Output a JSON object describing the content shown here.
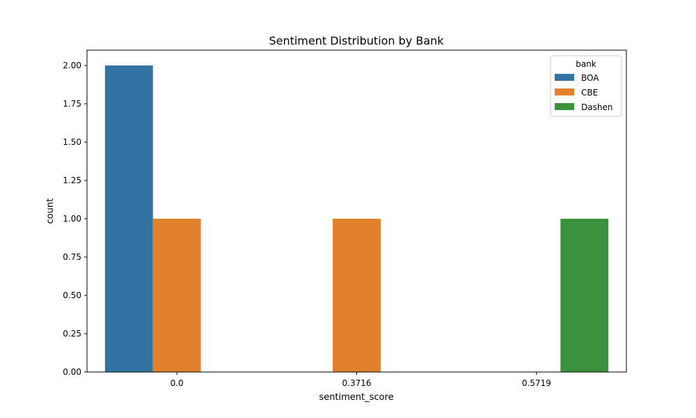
{
  "chart_data": {
    "type": "bar",
    "title": "Sentiment Distribution by Bank",
    "xlabel": "sentiment_score",
    "ylabel": "count",
    "categories": [
      "0.0",
      "0.3716",
      "0.5719"
    ],
    "ylim": [
      0,
      2.1
    ],
    "yticks": [
      "0.00",
      "0.25",
      "0.50",
      "0.75",
      "1.00",
      "1.25",
      "1.50",
      "1.75",
      "2.00"
    ],
    "grid": false,
    "legend": {
      "title": "bank",
      "position": "top-right"
    },
    "series": [
      {
        "name": "BOA",
        "color": "#3274a1",
        "values": [
          2,
          0,
          0
        ]
      },
      {
        "name": "CBE",
        "color": "#e1812c",
        "values": [
          1,
          1,
          0
        ]
      },
      {
        "name": "Dashen",
        "color": "#3a923a",
        "values": [
          0,
          0,
          1
        ]
      }
    ]
  }
}
